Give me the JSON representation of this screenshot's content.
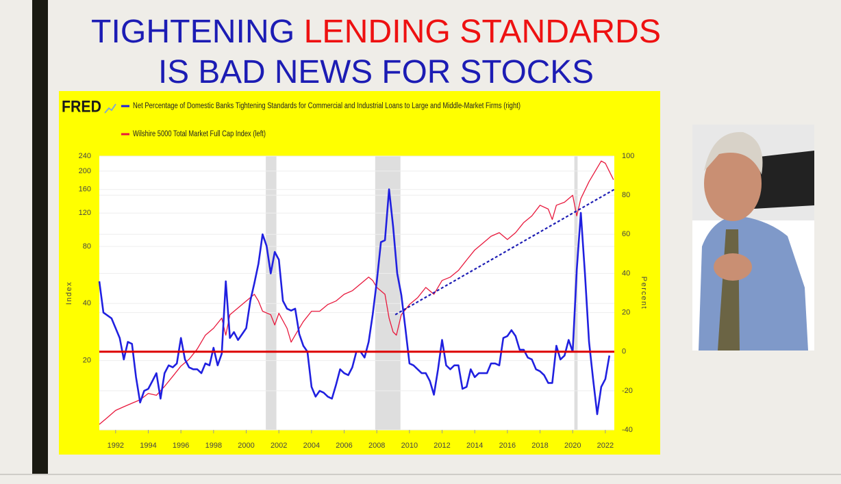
{
  "slide": {
    "title": {
      "line1": [
        {
          "text": "TIGHTENING ",
          "color": "#1c1cb4"
        },
        {
          "text": "LENDING STANDARDS",
          "color": "#ee1111"
        }
      ],
      "line2": [
        {
          "text": "IS BAD NEWS FOR STOCKS",
          "color": "#1c1cb4"
        }
      ]
    }
  },
  "chart_data": {
    "type": "line",
    "logo": "FRED",
    "y_label": "Index",
    "y2_label": "Percent",
    "yscale": "log",
    "ylim": [
      8.6,
      240
    ],
    "yticks": [
      20,
      40,
      80,
      120,
      160,
      200,
      240
    ],
    "y2lim": [
      -40,
      100
    ],
    "y2ticks": [
      -40,
      -20,
      0,
      20,
      40,
      60,
      80,
      100
    ],
    "xlim": [
      1991,
      2022.55
    ],
    "xticks": [
      1992,
      1994,
      1996,
      1998,
      2000,
      2002,
      2004,
      2006,
      2008,
      2010,
      2012,
      2014,
      2016,
      2018,
      2020,
      2022
    ],
    "grid": true,
    "recessions": [
      {
        "start": 2001.2,
        "end": 2001.85
      },
      {
        "start": 2007.9,
        "end": 2009.45
      },
      {
        "start": 2020.1,
        "end": 2020.3
      }
    ],
    "reference_line": {
      "value": 0,
      "axis": "y2",
      "color": "#dd0000"
    },
    "trend_line": {
      "x": [
        2009.13,
        2022.55
      ],
      "y": [
        34.9,
        160
      ],
      "color": "#1c1cb4"
    },
    "series": [
      {
        "name": "Net Percentage of Domestic Banks Tightening Standards for Commercial and Industrial Loans to Large and Middle-Market Firms (right)",
        "color": "#2020e0",
        "axis": "y2",
        "x": [
          1991,
          1991.25,
          1991.75,
          1992.25,
          1992.5,
          1992.75,
          1993,
          1993.25,
          1993.5,
          1993.75,
          1994,
          1994.25,
          1994.5,
          1994.75,
          1995,
          1995.25,
          1995.5,
          1995.75,
          1996,
          1996.25,
          1996.5,
          1996.75,
          1997,
          1997.25,
          1997.5,
          1997.75,
          1998,
          1998.25,
          1998.5,
          1998.75,
          1999,
          1999.25,
          1999.5,
          1999.75,
          2000,
          2000.25,
          2000.5,
          2000.75,
          2001,
          2001.25,
          2001.5,
          2001.75,
          2002,
          2002.25,
          2002.5,
          2002.75,
          2003,
          2003.25,
          2003.5,
          2003.75,
          2004,
          2004.25,
          2004.5,
          2004.75,
          2005,
          2005.25,
          2005.5,
          2005.75,
          2006,
          2006.25,
          2006.5,
          2006.75,
          2007,
          2007.25,
          2007.5,
          2007.75,
          2008,
          2008.25,
          2008.5,
          2008.75,
          2009,
          2009.25,
          2009.5,
          2009.75,
          2010,
          2010.25,
          2010.5,
          2010.75,
          2011,
          2011.25,
          2011.5,
          2011.75,
          2012,
          2012.25,
          2012.5,
          2012.75,
          2013,
          2013.25,
          2013.5,
          2013.75,
          2014,
          2014.25,
          2014.5,
          2014.75,
          2015,
          2015.25,
          2015.5,
          2015.75,
          2016,
          2016.25,
          2016.5,
          2016.75,
          2017,
          2017.25,
          2017.5,
          2017.75,
          2018,
          2018.25,
          2018.5,
          2018.75,
          2019,
          2019.25,
          2019.5,
          2019.75,
          2020,
          2020.25,
          2020.5,
          2020.75,
          2021,
          2021.25,
          2021.5,
          2021.75,
          2022,
          2022.25
        ],
        "values": [
          36,
          20,
          17,
          7,
          -4,
          5,
          4,
          -13,
          -26,
          -20,
          -19,
          -15,
          -11,
          -24,
          -11,
          -7,
          -8,
          -6,
          7,
          -4,
          -8,
          -9,
          -9,
          -11,
          -6,
          -7,
          2,
          -7,
          -1,
          36,
          7,
          10,
          6,
          9,
          12,
          26,
          35,
          45,
          60,
          54,
          40,
          51,
          47,
          26,
          22,
          21,
          22,
          9,
          3,
          0,
          -18,
          -23,
          -20,
          -21,
          -23,
          -24,
          -17,
          -9,
          -11,
          -12,
          -8,
          0,
          0,
          -3,
          5,
          19,
          36,
          56,
          57,
          83,
          64,
          40,
          29,
          12,
          -6,
          -7,
          -9,
          -11,
          -11,
          -15,
          -22,
          -9,
          6,
          -7,
          -9,
          -7,
          -7,
          -19,
          -18,
          -9,
          -13,
          -11,
          -11,
          -11,
          -6,
          -6,
          -7,
          7,
          8,
          11,
          8,
          1,
          1,
          -3,
          -4,
          -9,
          -10,
          -12,
          -16,
          -16,
          3,
          -4,
          -2,
          6,
          0,
          42,
          71,
          40,
          5,
          -14,
          -32,
          -18,
          -14,
          -2
        ]
      },
      {
        "name": "Wilshire 5000 Total Market Full Cap Index (left)",
        "color": "#e8183c",
        "axis": "y",
        "x": [
          1991,
          1991.5,
          1992,
          1992.5,
          1993,
          1993.5,
          1994,
          1994.5,
          1995,
          1995.5,
          1996,
          1996.5,
          1997,
          1997.5,
          1998,
          1998.5,
          1998.75,
          1999,
          1999.5,
          2000,
          2000.5,
          2000.75,
          2001,
          2001.5,
          2001.75,
          2002,
          2002.5,
          2002.75,
          2003,
          2003.5,
          2004,
          2004.5,
          2005,
          2005.5,
          2006,
          2006.5,
          2007,
          2007.5,
          2007.75,
          2008,
          2008.5,
          2008.75,
          2009,
          2009.2,
          2009.5,
          2010,
          2010.5,
          2011,
          2011.5,
          2012,
          2012.5,
          2013,
          2013.5,
          2014,
          2014.5,
          2015,
          2015.5,
          2016,
          2016.5,
          2017,
          2017.5,
          2018,
          2018.5,
          2018.75,
          2019,
          2019.5,
          2020,
          2020.25,
          2020.5,
          2021,
          2021.5,
          2021.75,
          2022,
          2022.5
        ],
        "values": [
          9.2,
          10.0,
          10.9,
          11.4,
          11.9,
          12.4,
          13.4,
          13.1,
          14.6,
          16.5,
          18.7,
          20.3,
          23.0,
          27.2,
          29.6,
          33.5,
          27.2,
          34.9,
          37.9,
          41.2,
          44.7,
          41.2,
          36.4,
          34.9,
          30.8,
          35.5,
          29.6,
          25.0,
          27.2,
          32.1,
          36.4,
          36.4,
          39.5,
          41.2,
          44.7,
          46.7,
          50.7,
          55.1,
          52.9,
          48.6,
          44.7,
          33.5,
          28.3,
          27.2,
          34.9,
          39.5,
          42.9,
          48.6,
          44.7,
          52.9,
          55.1,
          59.8,
          67.8,
          76.6,
          83.3,
          90.6,
          94.6,
          87.0,
          94.6,
          107,
          116,
          132,
          126,
          111,
          132,
          137,
          149,
          116,
          143,
          176,
          208,
          226,
          220,
          180
        ]
      }
    ]
  }
}
